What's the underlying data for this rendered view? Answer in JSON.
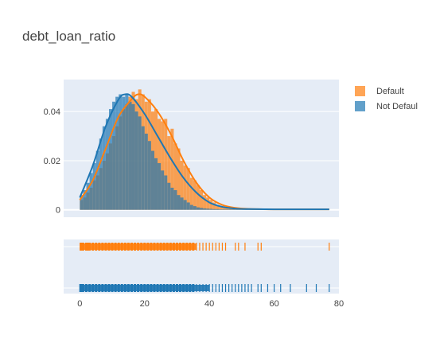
{
  "chart_data": {
    "type": "histogram",
    "title": "debt_loan_ratio",
    "legend_position": "top-right",
    "grid": true,
    "colors": {
      "plot_bg": "#e5ecf6",
      "grid": "#ffffff"
    },
    "x_range": [
      -5,
      80
    ],
    "x_ticks": [
      0,
      20,
      40,
      60,
      80
    ],
    "y_range": [
      -0.003,
      0.053
    ],
    "y_ticks": [
      0,
      0.02,
      0.04
    ],
    "y_tick_labels": [
      "0",
      "0.02",
      "0.04"
    ],
    "bin_width": 1,
    "series": [
      {
        "name": "Default",
        "color": "#ff7f0e",
        "bar_opacity": 0.7,
        "bin_start": 0,
        "hist_values": [
          0.004,
          0.005,
          0.007,
          0.009,
          0.012,
          0.014,
          0.017,
          0.02,
          0.023,
          0.027,
          0.03,
          0.034,
          0.038,
          0.041,
          0.043,
          0.046,
          0.048,
          0.045,
          0.049,
          0.047,
          0.044,
          0.045,
          0.04,
          0.041,
          0.037,
          0.036,
          0.037,
          0.03,
          0.033,
          0.027,
          0.025,
          0.02,
          0.018,
          0.017,
          0.013,
          0.012,
          0.01,
          0.008,
          0.006,
          0.005,
          0.004,
          0.003,
          0.002,
          0.0015,
          0.001,
          0.0008,
          0.0006,
          0.0005,
          0.0004,
          0.0004,
          0.0003,
          0.0003,
          0.0003,
          0.0002,
          0.0002,
          0.0002,
          0.0002,
          0.0002,
          0.0002,
          0.0002,
          0.0002,
          0.0002,
          0.0002,
          0.0002,
          0.0002,
          0.0002,
          0.0002,
          0.0002,
          0.0002,
          0.0002,
          0.0002,
          0.0002,
          0.0002,
          0.0002,
          0.0002,
          0.0002,
          0.0002
        ],
        "kde_x": [
          0,
          4,
          8,
          12,
          16,
          18,
          20,
          24,
          28,
          32,
          36,
          40,
          44,
          48,
          52,
          60,
          70,
          77
        ],
        "kde_y": [
          0.004,
          0.012,
          0.025,
          0.038,
          0.045,
          0.047,
          0.046,
          0.04,
          0.031,
          0.02,
          0.011,
          0.005,
          0.002,
          0.0008,
          0.0004,
          0.0002,
          0.0002,
          0.0002
        ],
        "rug": [
          0.3,
          1,
          2,
          2.5,
          3,
          4,
          5,
          6,
          7,
          8,
          9,
          10,
          11,
          12,
          13,
          14,
          15,
          16,
          17,
          18,
          19,
          20,
          21,
          22,
          23,
          24,
          25,
          26,
          27,
          28,
          29,
          30,
          31,
          32,
          33,
          34,
          35,
          36,
          37,
          38,
          39,
          40,
          41,
          42,
          43,
          44,
          45,
          48,
          49,
          51,
          55,
          56,
          77
        ]
      },
      {
        "name": "Not Defaul",
        "color": "#1f77b4",
        "bar_opacity": 0.7,
        "bin_start": 0,
        "hist_values": [
          0.006,
          0.008,
          0.011,
          0.015,
          0.019,
          0.024,
          0.029,
          0.034,
          0.037,
          0.041,
          0.044,
          0.046,
          0.047,
          0.046,
          0.047,
          0.044,
          0.043,
          0.04,
          0.038,
          0.034,
          0.031,
          0.028,
          0.024,
          0.021,
          0.019,
          0.016,
          0.014,
          0.011,
          0.009,
          0.008,
          0.006,
          0.005,
          0.004,
          0.003,
          0.002,
          0.0015,
          0.001,
          0.0008,
          0.0006,
          0.0005,
          0.0004,
          0.0003,
          0.0003,
          0.0002,
          0.0002,
          0.0002,
          0.0002,
          0.0002,
          0.0002,
          0.0002,
          0.0002,
          0.0002,
          0.0002,
          0.0002,
          0.0002,
          0.0002,
          0.0002,
          0.0002,
          0.0002,
          0.0002,
          0.0002,
          0.0002,
          0.0002,
          0.0002,
          0.0002,
          0.0002,
          0.0002,
          0.0002,
          0.0002,
          0.0002,
          0.0002,
          0.0002,
          0.0002,
          0.0002,
          0.0002,
          0.0002,
          0.0002
        ],
        "kde_x": [
          0,
          4,
          8,
          12,
          14,
          16,
          20,
          24,
          28,
          32,
          36,
          40,
          44,
          48,
          52,
          60,
          70,
          77
        ],
        "kde_y": [
          0.005,
          0.018,
          0.034,
          0.045,
          0.047,
          0.046,
          0.039,
          0.03,
          0.021,
          0.013,
          0.007,
          0.003,
          0.0012,
          0.0005,
          0.0003,
          0.0002,
          0.0002,
          0.0002
        ],
        "rug": [
          0.2,
          0.5,
          1,
          2,
          3,
          4,
          5,
          6,
          7,
          8,
          9,
          10,
          11,
          12,
          13,
          14,
          15,
          16,
          17,
          18,
          19,
          20,
          21,
          22,
          23,
          24,
          25,
          26,
          27,
          28,
          29,
          30,
          31,
          32,
          33,
          34,
          35,
          36,
          37,
          38,
          39,
          40,
          41,
          42,
          43,
          44,
          45,
          46,
          47,
          48,
          49,
          50,
          51,
          52,
          53,
          55,
          56,
          58,
          60,
          62,
          65,
          70,
          73,
          77
        ]
      }
    ]
  }
}
